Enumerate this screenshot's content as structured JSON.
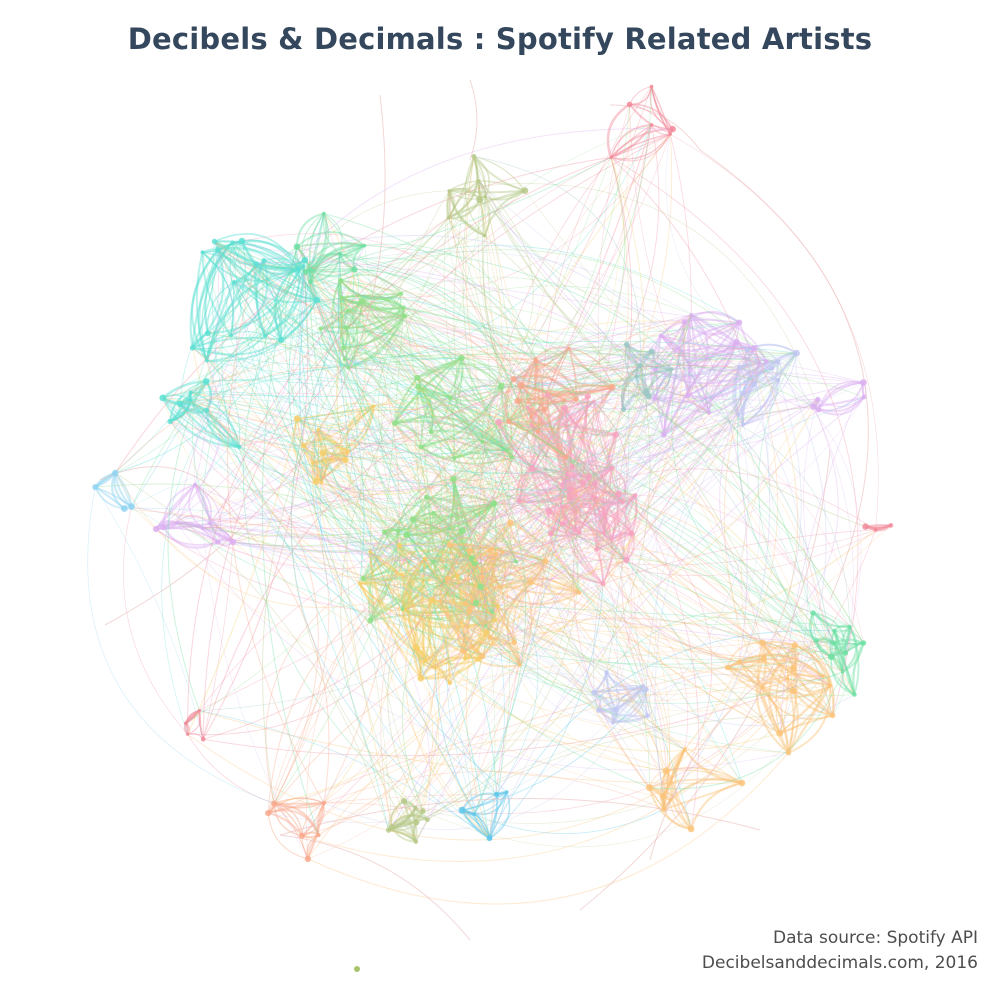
{
  "title": "Decibels & Decimals : Spotify Related Artists",
  "credits": {
    "source": "Data source: Spotify API",
    "site": "Decibelsanddecimals.com, 2016"
  },
  "palette": {
    "cyan": "#5ee0d3",
    "green": "#8fe08a",
    "yellow": "#f7cf6a",
    "orange": "#fbc47a",
    "peach": "#f9a88c",
    "pink": "#f7a3c0",
    "violet": "#dcb0f2",
    "lavender": "#c2c8f2",
    "sky": "#8fd3f2",
    "rose": "#f28a9a",
    "teal": "#9ac7c7",
    "sage": "#b7c98a",
    "mint": "#6fe0a4",
    "blue": "#5ec8ec"
  }
}
